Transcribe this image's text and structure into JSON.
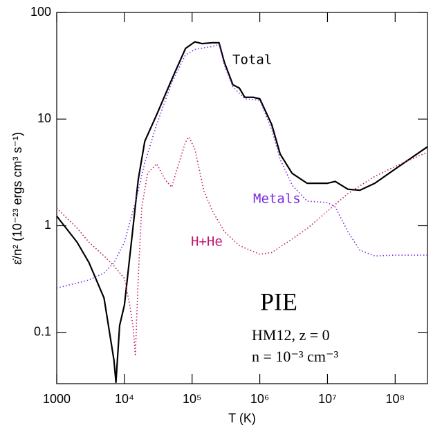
{
  "chart_data": {
    "type": "line",
    "xlabel": "T (K)",
    "ylabel": "ε̇/n²  (10⁻²³ ergs cm³ s⁻¹)",
    "xscale": "log",
    "yscale": "log",
    "xlim": [
      1000,
      300000000
    ],
    "ylim": [
      0.033,
      100
    ],
    "xticks": [
      1000,
      {
        "value": 10000,
        "label": "10⁴"
      },
      {
        "value": 100000,
        "label": "10⁵"
      },
      {
        "value": 1000000,
        "label": "10⁶"
      },
      {
        "value": 10000000,
        "label": "10⁷"
      },
      {
        "value": 100000000,
        "label": "10⁸"
      }
    ],
    "yticks": [
      0.1,
      1,
      10,
      100
    ],
    "series": [
      {
        "name": "Total",
        "color": "#000000",
        "style": "solid",
        "x": [
          1000,
          2000,
          3000,
          5000,
          7000,
          7500,
          8500,
          10000,
          13000,
          16000,
          20000,
          30000,
          50000,
          80000,
          110000,
          140000,
          200000,
          250000,
          300000,
          400000,
          500000,
          600000,
          800000,
          1000000,
          1500000,
          2000000,
          3000000,
          5000000,
          10000000,
          13000000,
          20000000,
          30000000,
          50000000,
          100000000,
          300000000
        ],
        "values": [
          1.23,
          0.7,
          0.45,
          0.21,
          0.055,
          0.034,
          0.116,
          0.18,
          0.81,
          2.7,
          6.2,
          11,
          23.5,
          46,
          53,
          51,
          52,
          52,
          34,
          21,
          19.5,
          16,
          16,
          15.5,
          8.9,
          4.7,
          3.1,
          2.5,
          2.5,
          2.6,
          2.2,
          2.15,
          2.5,
          3.4,
          5.5
        ]
      },
      {
        "name": "Metals",
        "color": "#7b2be2",
        "style": "dotted",
        "x": [
          1000,
          3000,
          5000,
          7000,
          10000,
          15000,
          20000,
          30000,
          50000,
          80000,
          110000,
          200000,
          250000,
          300000,
          400000,
          600000,
          1000000,
          1500000,
          2000000,
          3000000,
          5000000,
          10000000,
          13000000,
          20000000,
          30000000,
          50000000,
          100000000,
          300000000
        ],
        "values": [
          0.26,
          0.31,
          0.36,
          0.45,
          0.7,
          1.8,
          3.9,
          8.9,
          22,
          40,
          45,
          48,
          50,
          32,
          20,
          15.5,
          15,
          8,
          4.2,
          2.4,
          1.7,
          1.65,
          1.5,
          0.88,
          0.59,
          0.52,
          0.53,
          0.53
        ]
      },
      {
        "name": "H+He",
        "color": "#c0186a",
        "style": "dotted",
        "x": [
          1000,
          2000,
          3000,
          5000,
          7000,
          10000,
          12000,
          13500,
          14500,
          16000,
          18000,
          22000,
          30000,
          40000,
          50000,
          60000,
          80000,
          90000,
          110000,
          150000,
          200000,
          300000,
          500000,
          1000000,
          1500000,
          3000000,
          5000000,
          10000000,
          20000000,
          50000000,
          100000000,
          300000000
        ],
        "values": [
          1.46,
          0.95,
          0.7,
          0.52,
          0.42,
          0.32,
          0.18,
          0.11,
          0.06,
          0.32,
          1.47,
          3.1,
          3.8,
          2.7,
          2.3,
          3.4,
          6.1,
          6.8,
          5.2,
          2.1,
          1.37,
          0.88,
          0.65,
          0.54,
          0.56,
          0.75,
          0.94,
          1.37,
          2.0,
          2.9,
          3.6,
          4.9
        ]
      }
    ],
    "annotations": [
      "PIE",
      "HM12, z = 0",
      "n = 10⁻³ cm⁻³"
    ]
  }
}
